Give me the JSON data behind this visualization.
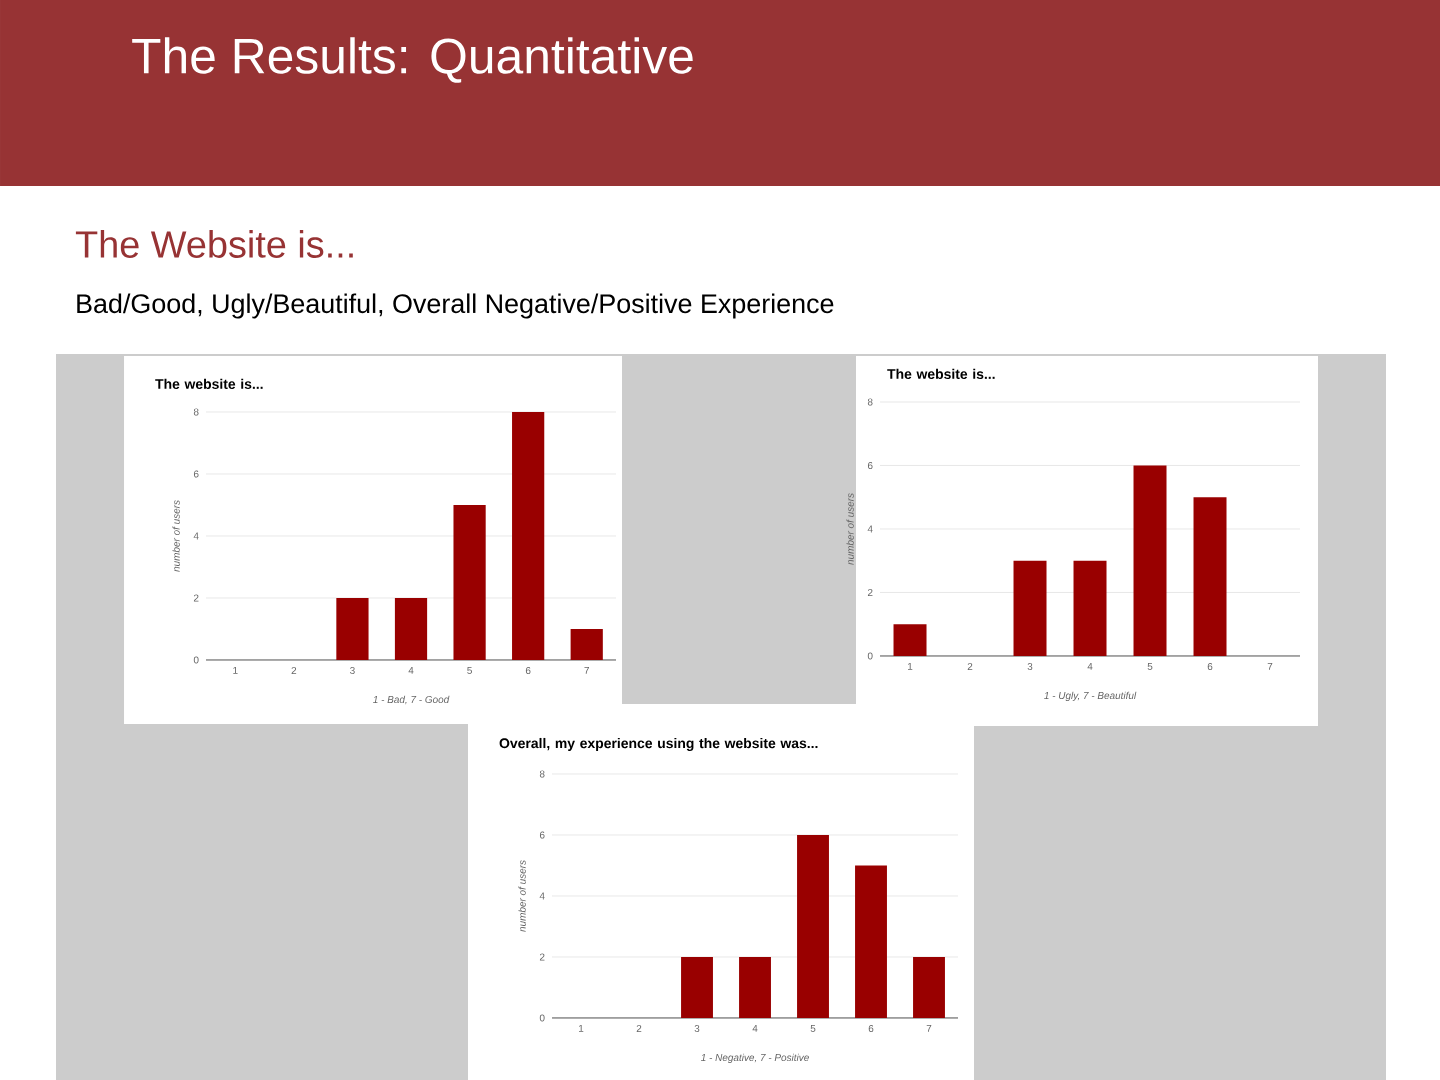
{
  "chart_data": [
    {
      "type": "other",
      "title": "The Results: Quantitative",
      "subtitle": "The Website is...",
      "annotations": [
        "Bad/Good, Ugly/Beautiful, Overall Negative/Positive Experience"
      ]
    },
    {
      "type": "bar",
      "title": "The website is...",
      "xlabel": "1 - Bad, 7 - Good",
      "ylabel": "number of users",
      "categories": [
        "1",
        "2",
        "3",
        "4",
        "5",
        "6",
        "7"
      ],
      "values": [
        0,
        0,
        2,
        2,
        5,
        8,
        1
      ],
      "color": "#990000",
      "ylim": [
        0,
        8
      ],
      "yticks": [
        0,
        2,
        4,
        6,
        8
      ],
      "grid": "y"
    },
    {
      "type": "bar",
      "title": "The website is...",
      "xlabel": "1 - Ugly, 7 - Beautiful",
      "ylabel": "number of users",
      "categories": [
        "1",
        "2",
        "3",
        "4",
        "5",
        "6",
        "7"
      ],
      "values": [
        1,
        0,
        3,
        3,
        6,
        5,
        0
      ],
      "color": "#990000",
      "ylim": [
        0,
        8
      ],
      "yticks": [
        0,
        2,
        4,
        6,
        8
      ],
      "grid": "y"
    },
    {
      "type": "bar",
      "title": "Overall, my experience using the website was...",
      "xlabel": "1 - Negative, 7 - Positive",
      "ylabel": "number of users",
      "categories": [
        "1",
        "2",
        "3",
        "4",
        "5",
        "6",
        "7"
      ],
      "values": [
        0,
        0,
        2,
        2,
        6,
        5,
        2
      ],
      "color": "#990000",
      "ylim": [
        0,
        8
      ],
      "yticks": [
        0,
        2,
        4,
        6,
        8
      ],
      "grid": "y"
    }
  ]
}
